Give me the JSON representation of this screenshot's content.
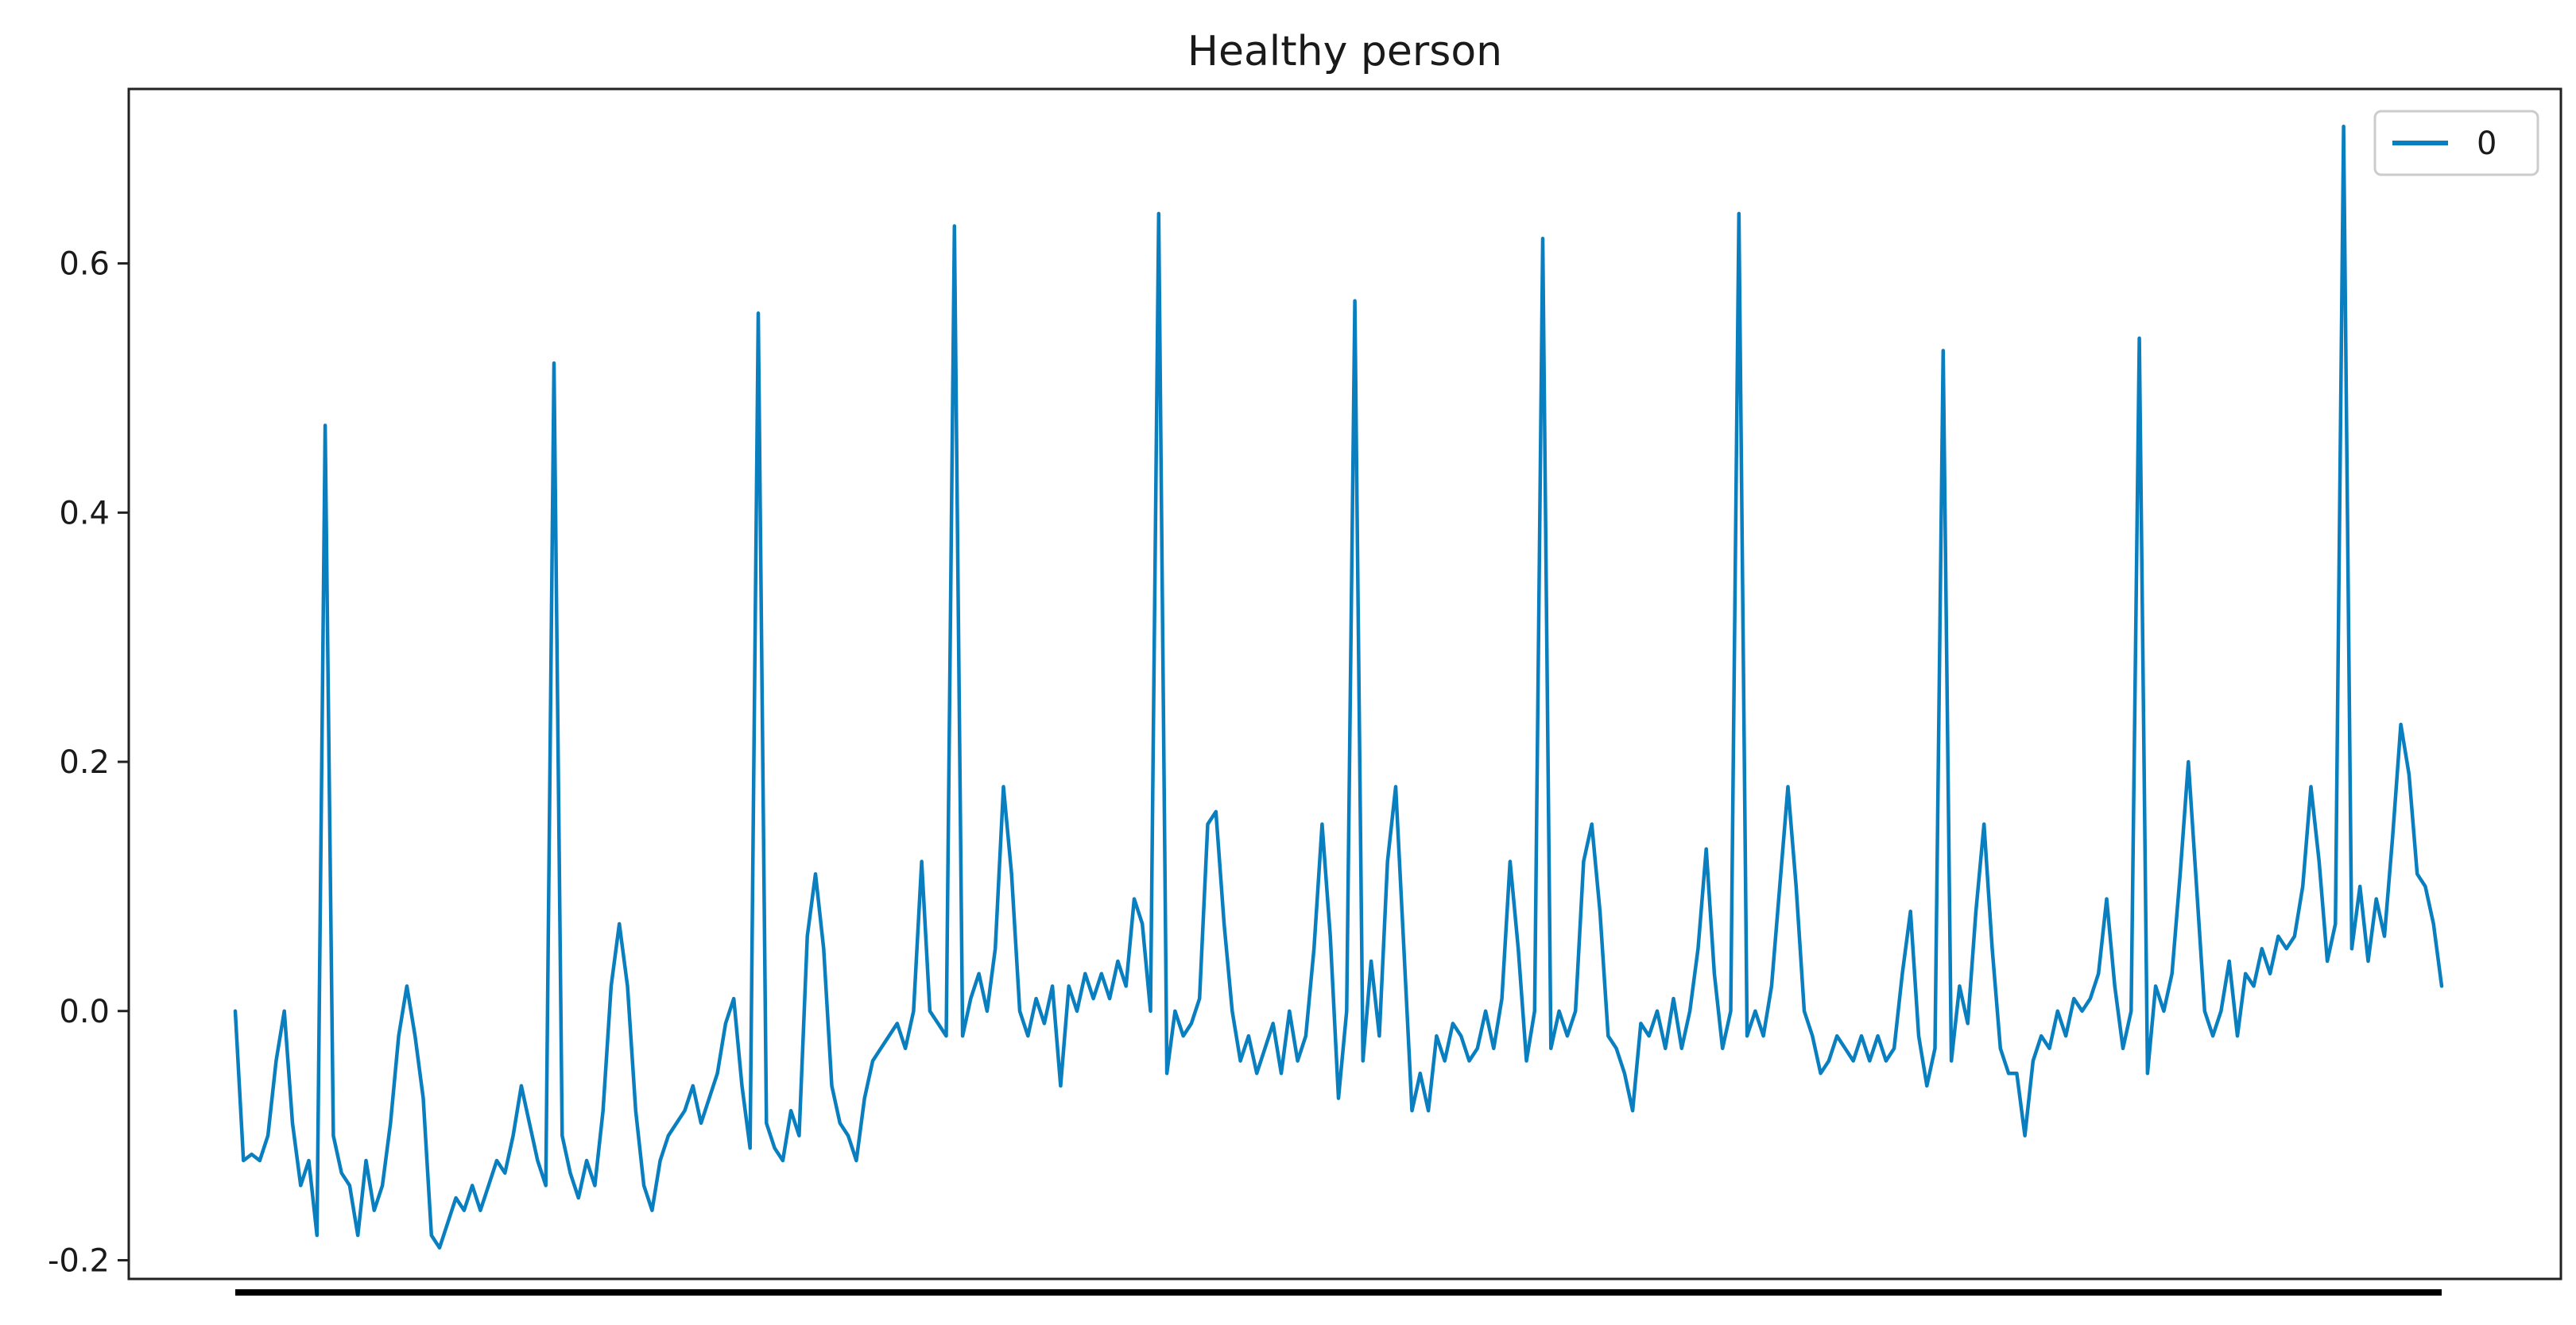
{
  "chart_data": {
    "type": "line",
    "title": "Healthy person",
    "xlabel": "",
    "ylabel": "",
    "ylim": [
      -0.215,
      0.74
    ],
    "yticks": [
      -0.2,
      0.0,
      0.2,
      0.4,
      0.6
    ],
    "ytick_labels": [
      "-0.2",
      "0.0",
      "0.2",
      "0.4",
      "0.6"
    ],
    "xticks_visible": false,
    "grid": false,
    "legend": {
      "placement": "top-right",
      "entries": [
        "0"
      ]
    },
    "series": [
      {
        "name": "0",
        "color": "#0a7fbf",
        "beat_anchors": [
          [
            0,
            0.0
          ],
          [
            1,
            -0.12
          ],
          [
            2,
            -0.115
          ],
          [
            3,
            -0.12
          ],
          [
            4,
            -0.1
          ],
          [
            5,
            -0.04
          ],
          [
            6,
            0.0
          ],
          [
            7,
            -0.09
          ],
          [
            8,
            -0.14
          ],
          [
            9,
            -0.12
          ],
          [
            10,
            -0.18
          ],
          [
            11,
            0.47
          ],
          [
            12,
            -0.1
          ],
          [
            13,
            -0.13
          ],
          [
            14,
            -0.14
          ],
          [
            15,
            -0.18
          ],
          [
            16,
            -0.12
          ],
          [
            17,
            -0.16
          ],
          [
            18,
            -0.14
          ],
          [
            19,
            -0.09
          ],
          [
            20,
            -0.02
          ],
          [
            21,
            0.02
          ],
          [
            22,
            -0.02
          ],
          [
            23,
            -0.07
          ],
          [
            24,
            -0.18
          ],
          [
            25,
            -0.19
          ],
          [
            26,
            -0.17
          ],
          [
            27,
            -0.15
          ],
          [
            28,
            -0.16
          ],
          [
            29,
            -0.14
          ],
          [
            30,
            -0.16
          ],
          [
            31,
            -0.14
          ],
          [
            32,
            -0.12
          ],
          [
            33,
            -0.13
          ],
          [
            34,
            -0.1
          ],
          [
            35,
            -0.06
          ],
          [
            36,
            -0.09
          ],
          [
            37,
            -0.12
          ],
          [
            38,
            -0.14
          ],
          [
            39,
            0.52
          ],
          [
            40,
            -0.1
          ],
          [
            41,
            -0.13
          ],
          [
            42,
            -0.15
          ],
          [
            43,
            -0.12
          ],
          [
            44,
            -0.14
          ],
          [
            45,
            -0.08
          ],
          [
            46,
            0.02
          ],
          [
            47,
            0.07
          ],
          [
            48,
            0.02
          ],
          [
            49,
            -0.08
          ],
          [
            50,
            -0.14
          ],
          [
            51,
            -0.16
          ],
          [
            52,
            -0.12
          ],
          [
            53,
            -0.1
          ],
          [
            54,
            -0.09
          ],
          [
            55,
            -0.08
          ],
          [
            56,
            -0.06
          ],
          [
            57,
            -0.09
          ],
          [
            58,
            -0.07
          ],
          [
            59,
            -0.05
          ],
          [
            60,
            -0.01
          ],
          [
            61,
            0.01
          ],
          [
            62,
            -0.06
          ],
          [
            63,
            -0.11
          ],
          [
            64,
            0.56
          ],
          [
            65,
            -0.09
          ],
          [
            66,
            -0.11
          ],
          [
            67,
            -0.12
          ],
          [
            68,
            -0.08
          ],
          [
            69,
            -0.1
          ],
          [
            70,
            0.06
          ],
          [
            71,
            0.11
          ],
          [
            72,
            0.05
          ],
          [
            73,
            -0.06
          ],
          [
            74,
            -0.09
          ],
          [
            75,
            -0.1
          ],
          [
            76,
            -0.12
          ],
          [
            77,
            -0.07
          ],
          [
            78,
            -0.04
          ],
          [
            79,
            -0.03
          ],
          [
            80,
            -0.02
          ],
          [
            81,
            -0.01
          ],
          [
            82,
            -0.03
          ],
          [
            83,
            0.0
          ],
          [
            84,
            0.12
          ],
          [
            85,
            0.0
          ],
          [
            86,
            -0.01
          ],
          [
            87,
            -0.02
          ],
          [
            88,
            0.63
          ],
          [
            89,
            -0.02
          ],
          [
            90,
            0.01
          ],
          [
            91,
            0.03
          ],
          [
            92,
            0.0
          ],
          [
            93,
            0.05
          ],
          [
            94,
            0.18
          ],
          [
            95,
            0.11
          ],
          [
            96,
            0.0
          ],
          [
            97,
            -0.02
          ],
          [
            98,
            0.01
          ],
          [
            99,
            -0.01
          ],
          [
            100,
            0.02
          ],
          [
            101,
            -0.06
          ],
          [
            102,
            0.02
          ],
          [
            103,
            0.0
          ],
          [
            104,
            0.03
          ],
          [
            105,
            0.01
          ],
          [
            106,
            0.03
          ],
          [
            107,
            0.01
          ],
          [
            108,
            0.04
          ],
          [
            109,
            0.02
          ],
          [
            110,
            0.09
          ],
          [
            111,
            0.07
          ],
          [
            112,
            0.0
          ],
          [
            113,
            0.64
          ],
          [
            114,
            -0.05
          ],
          [
            115,
            0.0
          ],
          [
            116,
            -0.02
          ],
          [
            117,
            -0.01
          ],
          [
            118,
            0.01
          ],
          [
            119,
            0.15
          ],
          [
            120,
            0.16
          ],
          [
            121,
            0.07
          ],
          [
            122,
            0.0
          ],
          [
            123,
            -0.04
          ],
          [
            124,
            -0.02
          ],
          [
            125,
            -0.05
          ],
          [
            126,
            -0.03
          ],
          [
            127,
            -0.01
          ],
          [
            128,
            -0.05
          ],
          [
            129,
            0.0
          ],
          [
            130,
            -0.04
          ],
          [
            131,
            -0.02
          ],
          [
            132,
            0.05
          ],
          [
            133,
            0.15
          ],
          [
            134,
            0.06
          ],
          [
            135,
            -0.07
          ],
          [
            136,
            0.0
          ],
          [
            137,
            0.57
          ],
          [
            138,
            -0.04
          ],
          [
            139,
            0.04
          ],
          [
            140,
            -0.02
          ],
          [
            141,
            0.12
          ],
          [
            142,
            0.18
          ],
          [
            143,
            0.05
          ],
          [
            144,
            -0.08
          ],
          [
            145,
            -0.05
          ],
          [
            146,
            -0.08
          ],
          [
            147,
            -0.02
          ],
          [
            148,
            -0.04
          ],
          [
            149,
            -0.01
          ],
          [
            150,
            -0.02
          ],
          [
            151,
            -0.04
          ],
          [
            152,
            -0.03
          ],
          [
            153,
            0.0
          ],
          [
            154,
            -0.03
          ],
          [
            155,
            0.01
          ],
          [
            156,
            0.12
          ],
          [
            157,
            0.05
          ],
          [
            158,
            -0.04
          ],
          [
            159,
            0.0
          ],
          [
            160,
            0.62
          ],
          [
            161,
            -0.03
          ],
          [
            162,
            0.0
          ],
          [
            163,
            -0.02
          ],
          [
            164,
            0.0
          ],
          [
            165,
            0.12
          ],
          [
            166,
            0.15
          ],
          [
            167,
            0.08
          ],
          [
            168,
            -0.02
          ],
          [
            169,
            -0.03
          ],
          [
            170,
            -0.05
          ],
          [
            171,
            -0.08
          ],
          [
            172,
            -0.01
          ],
          [
            173,
            -0.02
          ],
          [
            174,
            0.0
          ],
          [
            175,
            -0.03
          ],
          [
            176,
            0.01
          ],
          [
            177,
            -0.03
          ],
          [
            178,
            0.0
          ],
          [
            179,
            0.05
          ],
          [
            180,
            0.13
          ],
          [
            181,
            0.03
          ],
          [
            182,
            -0.03
          ],
          [
            183,
            0.0
          ],
          [
            184,
            0.64
          ],
          [
            185,
            -0.02
          ],
          [
            186,
            0.0
          ],
          [
            187,
            -0.02
          ],
          [
            188,
            0.02
          ],
          [
            189,
            0.1
          ],
          [
            190,
            0.18
          ],
          [
            191,
            0.1
          ],
          [
            192,
            0.0
          ],
          [
            193,
            -0.02
          ],
          [
            194,
            -0.05
          ],
          [
            195,
            -0.04
          ],
          [
            196,
            -0.02
          ],
          [
            197,
            -0.03
          ],
          [
            198,
            -0.04
          ],
          [
            199,
            -0.02
          ],
          [
            200,
            -0.04
          ],
          [
            201,
            -0.02
          ],
          [
            202,
            -0.04
          ],
          [
            203,
            -0.03
          ],
          [
            204,
            0.03
          ],
          [
            205,
            0.08
          ],
          [
            206,
            -0.02
          ],
          [
            207,
            -0.06
          ],
          [
            208,
            -0.03
          ],
          [
            209,
            0.53
          ],
          [
            210,
            -0.04
          ],
          [
            211,
            0.02
          ],
          [
            212,
            -0.01
          ],
          [
            213,
            0.08
          ],
          [
            214,
            0.15
          ],
          [
            215,
            0.05
          ],
          [
            216,
            -0.03
          ],
          [
            217,
            -0.05
          ],
          [
            218,
            -0.05
          ],
          [
            219,
            -0.1
          ],
          [
            220,
            -0.04
          ],
          [
            221,
            -0.02
          ],
          [
            222,
            -0.03
          ],
          [
            223,
            0.0
          ],
          [
            224,
            -0.02
          ],
          [
            225,
            0.01
          ],
          [
            226,
            0.0
          ],
          [
            227,
            0.01
          ],
          [
            228,
            0.03
          ],
          [
            229,
            0.09
          ],
          [
            230,
            0.02
          ],
          [
            231,
            -0.03
          ],
          [
            232,
            0.0
          ],
          [
            233,
            0.54
          ],
          [
            234,
            -0.05
          ],
          [
            235,
            0.02
          ],
          [
            236,
            0.0
          ],
          [
            237,
            0.03
          ],
          [
            238,
            0.11
          ],
          [
            239,
            0.2
          ],
          [
            240,
            0.1
          ],
          [
            241,
            0.0
          ],
          [
            242,
            -0.02
          ],
          [
            243,
            0.0
          ],
          [
            244,
            0.04
          ],
          [
            245,
            -0.02
          ],
          [
            246,
            0.03
          ],
          [
            247,
            0.02
          ],
          [
            248,
            0.05
          ],
          [
            249,
            0.03
          ],
          [
            250,
            0.06
          ],
          [
            251,
            0.05
          ],
          [
            252,
            0.06
          ],
          [
            253,
            0.1
          ],
          [
            254,
            0.18
          ],
          [
            255,
            0.12
          ],
          [
            256,
            0.04
          ],
          [
            257,
            0.07
          ],
          [
            258,
            0.71
          ],
          [
            259,
            0.05
          ],
          [
            260,
            0.1
          ],
          [
            261,
            0.04
          ],
          [
            262,
            0.09
          ],
          [
            263,
            0.06
          ],
          [
            264,
            0.14
          ],
          [
            265,
            0.23
          ],
          [
            266,
            0.19
          ],
          [
            267,
            0.11
          ],
          [
            268,
            0.1
          ],
          [
            269,
            0.07
          ],
          [
            270,
            0.02
          ]
        ]
      }
    ]
  }
}
